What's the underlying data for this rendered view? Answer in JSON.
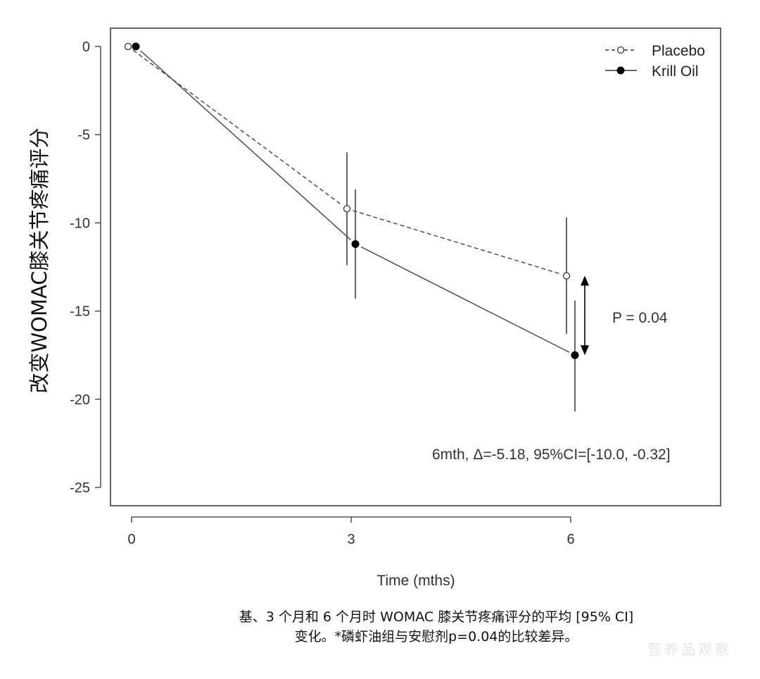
{
  "chart_data": {
    "type": "line",
    "xlabel": "Time (mths)",
    "ylabel": "改变WOMAC膝关节疼痛评分",
    "xlim": [
      -0.3,
      8.1
    ],
    "ylim": [
      -26,
      1
    ],
    "x_ticks": [
      0,
      3,
      6
    ],
    "y_ticks": [
      0,
      -5,
      -10,
      -15,
      -20,
      -25
    ],
    "x_tick_labels": [
      "0",
      "3",
      "6"
    ],
    "y_tick_labels": [
      "0",
      "-5",
      "-10",
      "-15",
      "-20",
      "-25"
    ],
    "legend_position": "top-right",
    "grid": false,
    "series": [
      {
        "name": "Placebo",
        "marker": "open-circle",
        "line_style": "dashed",
        "x": [
          0,
          3,
          6
        ],
        "y": [
          0,
          -9.2,
          -13.0
        ],
        "ci_low": [
          0,
          -12.4,
          -16.3
        ],
        "ci_high": [
          0,
          -6.0,
          -9.7
        ]
      },
      {
        "name": "Krill Oil",
        "marker": "filled-circle",
        "line_style": "solid",
        "x": [
          0,
          3,
          6
        ],
        "y": [
          0,
          -11.2,
          -17.5
        ],
        "ci_low": [
          0,
          -14.3,
          -20.7
        ],
        "ci_high": [
          0,
          -8.1,
          -14.4
        ]
      }
    ],
    "annotations": {
      "p_value": "P = 0.04",
      "difference": "6mth, Δ=-5.18, 95%CI=[-10.0, -0.32]"
    },
    "p_arrow_range": [
      -13.0,
      -17.5
    ]
  },
  "caption": {
    "line1": "基、3 个月和 6 个月时 WOMAC 膝关节疼痛评分的平均 [95% CI]",
    "line2": "变化。*磷虾油组与安慰剂p=0.04的比较差异。"
  },
  "watermark": "营养品观察"
}
